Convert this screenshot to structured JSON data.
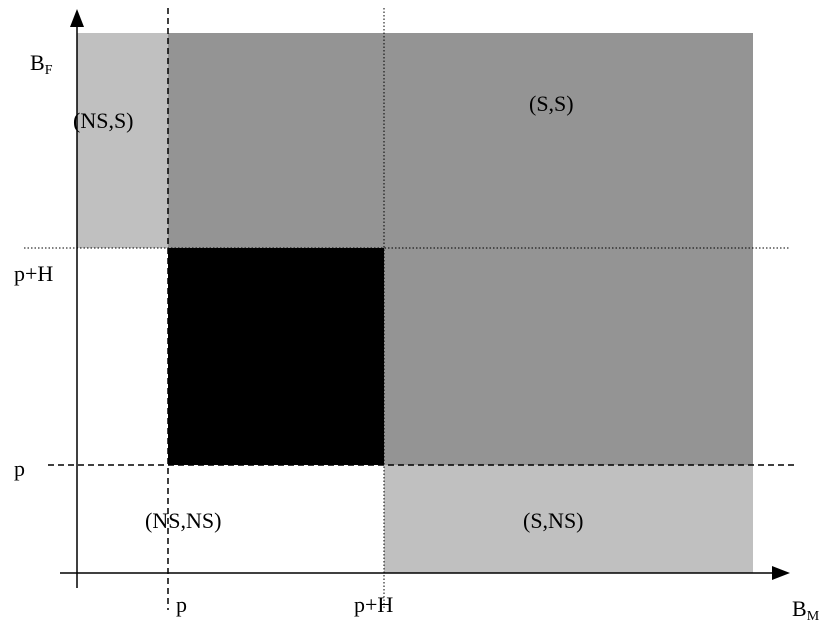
{
  "axes": {
    "x_label": "B",
    "x_label_sub": "M",
    "y_label": "B",
    "y_label_sub": "F",
    "x_ticks": [
      "p",
      "p+H"
    ],
    "y_ticks": [
      "p",
      "p+H"
    ]
  },
  "regions": {
    "ns_s": "(NS,S)",
    "s_s": "(S,S)",
    "ns_ns": "(NS,NS)",
    "s_ns": "(S,NS)"
  },
  "colors": {
    "light_gray": "#c0c0c0",
    "dark_gray": "#949494",
    "black": "#000000",
    "white": "#ffffff"
  }
}
